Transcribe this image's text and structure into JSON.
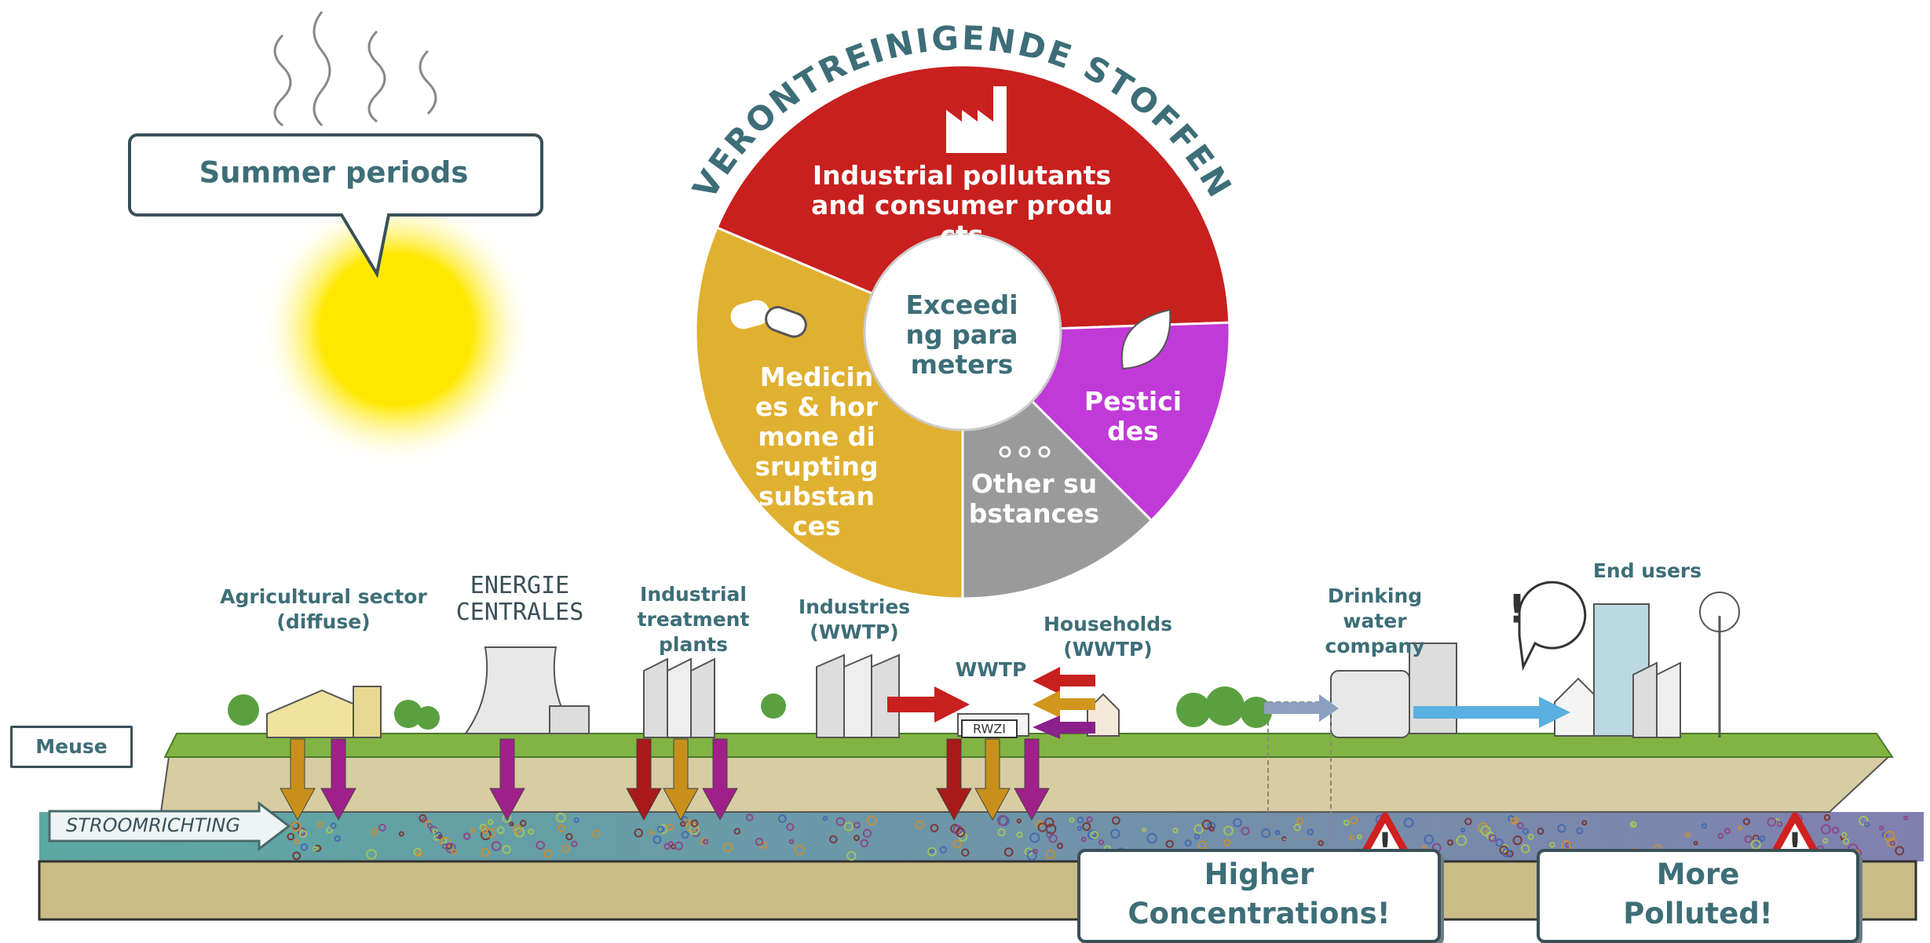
{
  "callout": {
    "text": "Summer periods"
  },
  "wheel": {
    "title": "VERONTREINIGENDE STOFFEN",
    "center": "Exceeding parameters",
    "segments": [
      {
        "label": "Industrial pollutants and consumer products"
      },
      {
        "label": "Pesticides"
      },
      {
        "label": "Other substances"
      },
      {
        "label": "Medicines & hormone disrupting substances"
      }
    ]
  },
  "labels": {
    "agricultural": "Agricultural sector (diffuse)",
    "energy": "ENERGIE CENTRALES",
    "industrial_treatment": "Industrial treatment plants",
    "industries": "Industries (WWTP)",
    "wwtp": "WWTP",
    "households": "Households (WWTP)",
    "drinking_water": "Drinking water company",
    "end_users": "End users"
  },
  "river": {
    "name": "Meuse",
    "flow": "STROOMRICHTING",
    "plant": "RWZI"
  },
  "warnings": [
    {
      "lines": [
        "Higher",
        "Concentrations!"
      ]
    },
    {
      "lines": [
        "More",
        "Polluted!"
      ]
    }
  ]
}
